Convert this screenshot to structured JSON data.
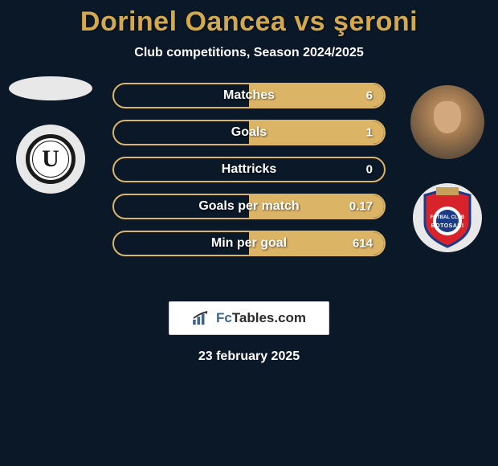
{
  "title": "Dorinel Oancea vs şeroni",
  "subtitle": "Club competitions, Season 2024/2025",
  "colors": {
    "background": "#0a1828",
    "accent": "#dcb466",
    "title": "#d4a94e",
    "text": "#ffffff",
    "brand_fc": "#41658a",
    "brand_rest": "#2c2c2c"
  },
  "left": {
    "avatar_name": "player-avatar-oancea",
    "club_name": "club-universitatea-cluj",
    "club_letter": "U"
  },
  "right": {
    "avatar_name": "player-avatar-seroni",
    "club_name": "club-botosani"
  },
  "stats": [
    {
      "label": "Matches",
      "left_val": "",
      "right_val": "6",
      "right_fill_pct": 100
    },
    {
      "label": "Goals",
      "left_val": "",
      "right_val": "1",
      "right_fill_pct": 100
    },
    {
      "label": "Hattricks",
      "left_val": "",
      "right_val": "0",
      "right_fill_pct": 0
    },
    {
      "label": "Goals per match",
      "left_val": "",
      "right_val": "0.17",
      "right_fill_pct": 100
    },
    {
      "label": "Min per goal",
      "left_val": "",
      "right_val": "614",
      "right_fill_pct": 100
    }
  ],
  "brand": {
    "fc": "Fc",
    "tables": "Tables",
    "com": ".com"
  },
  "date": "23 february 2025"
}
